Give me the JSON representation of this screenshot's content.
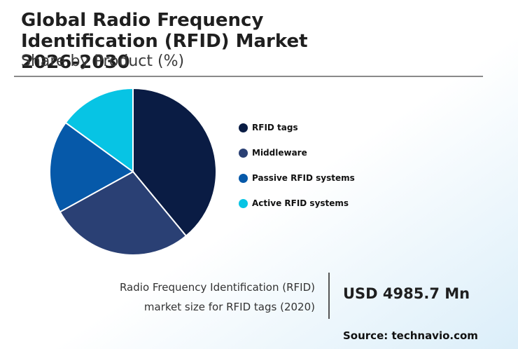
{
  "chart_data": {
    "type": "pie",
    "title": "Global Radio Frequency Identification (RFID) Market 2026-2030",
    "subtitle": "Share by Product (%)",
    "categories": [
      "RFID tags",
      "Middleware",
      "Passive RFID systems",
      "Active RFID systems"
    ],
    "values": [
      39,
      28,
      18,
      15
    ],
    "colors": [
      "#0a1c44",
      "#2a4074",
      "#0659a9",
      "#07c4e4"
    ],
    "legend_position": "right"
  },
  "info": {
    "description_line1": "Radio Frequency Identification (RFID)",
    "description_line2": "market size for RFID tags (2020)",
    "value": "USD 4985.7 Mn"
  },
  "source": "Source: technavio.com"
}
